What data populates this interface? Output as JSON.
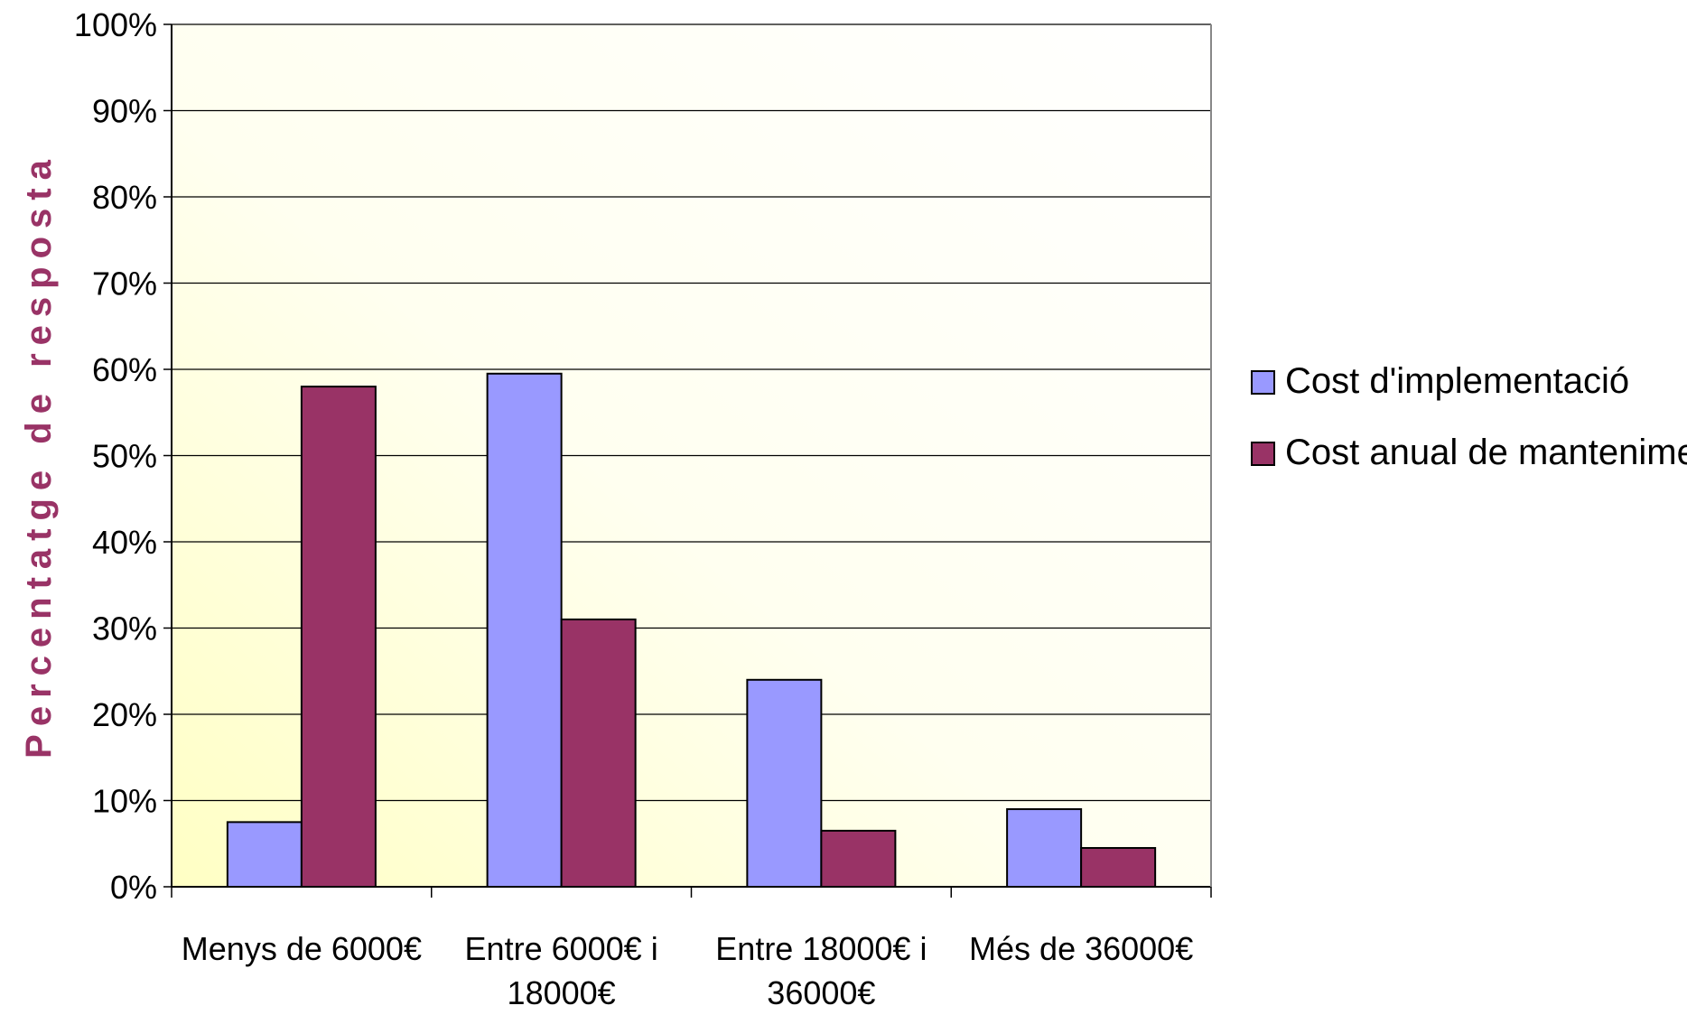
{
  "chart_data": {
    "type": "bar",
    "title": "",
    "xlabel": "",
    "ylabel": "Percentatge de resposta",
    "ylim": [
      0,
      100
    ],
    "yticks": [
      "0%",
      "10%",
      "20%",
      "30%",
      "40%",
      "50%",
      "60%",
      "70%",
      "80%",
      "90%",
      "100%"
    ],
    "categories": [
      [
        "Menys de 6000€"
      ],
      [
        "Entre 6000€ i",
        "18000€"
      ],
      [
        "Entre 18000€ i",
        "36000€"
      ],
      [
        "Més de 36000€"
      ]
    ],
    "series": [
      {
        "name": "Cost d'implementació",
        "color": "#9999ff",
        "values": [
          7.5,
          59.5,
          24,
          9
        ]
      },
      {
        "name": "Cost anual de manteniment",
        "color": "#993366",
        "values": [
          58,
          31,
          6.5,
          4.5
        ]
      }
    ],
    "grid": true,
    "legend_position": "right",
    "ylabel_color": "#993366"
  }
}
